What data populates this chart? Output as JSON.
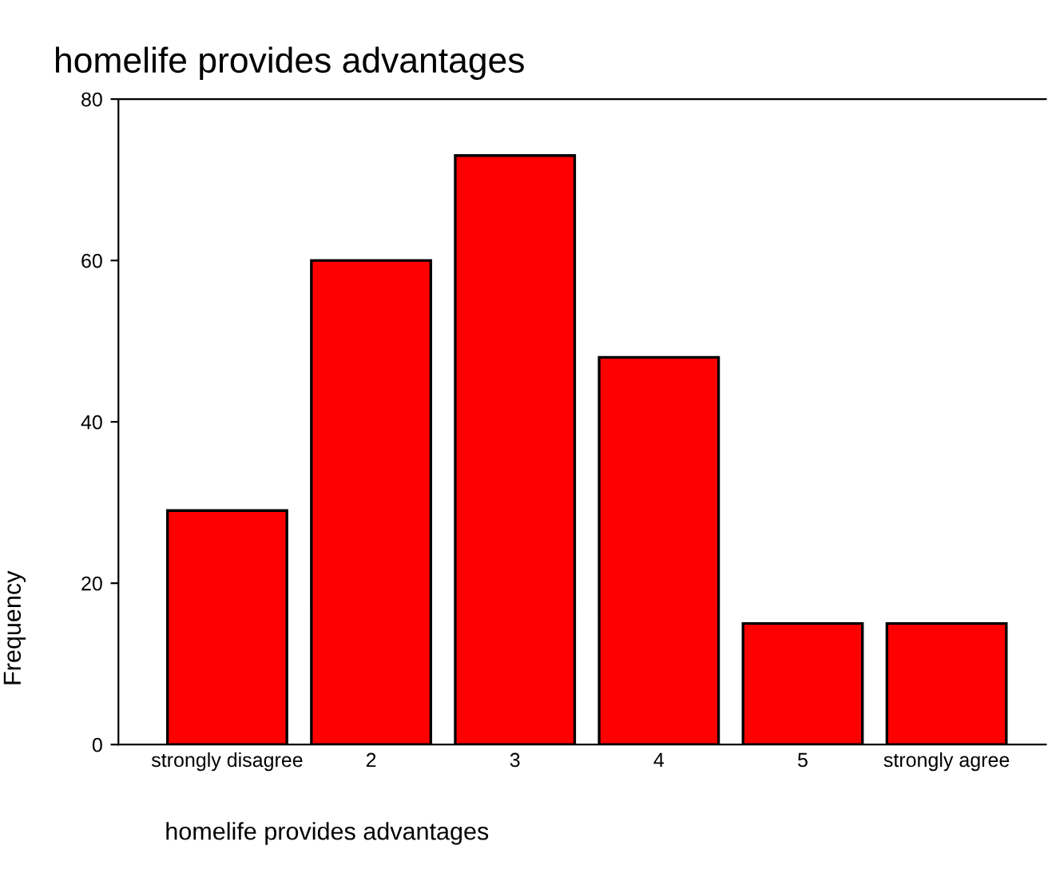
{
  "chart_data": {
    "type": "bar",
    "title": "homelife provides advantages",
    "xlabel": "homelife provides advantages",
    "ylabel": "Frequency",
    "categories": [
      "strongly disagree",
      "2",
      "3",
      "4",
      "5",
      "strongly agree"
    ],
    "values": [
      29,
      60,
      73,
      48,
      15,
      15
    ],
    "color": "#ff0000",
    "ylim": [
      0,
      80
    ],
    "yticks": [
      0,
      20,
      40,
      60,
      80
    ],
    "grid": false,
    "legend": false
  }
}
